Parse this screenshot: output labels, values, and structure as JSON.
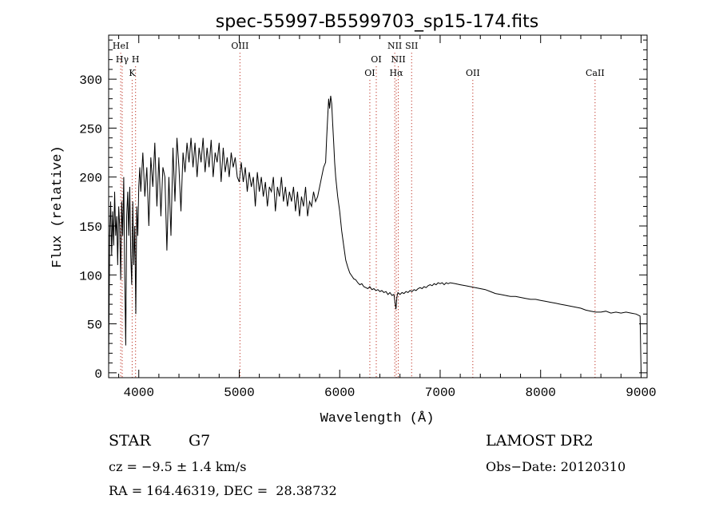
{
  "chart_data": {
    "type": "line",
    "title": "spec-55997-B5599703_sp15-174.fits",
    "xlabel": "Wavelength (Å)",
    "ylabel": "Flux (relative)",
    "xlim": [
      3700,
      9060
    ],
    "ylim": [
      -5,
      345
    ],
    "x_ticks": [
      4000,
      5000,
      6000,
      7000,
      8000,
      9000
    ],
    "y_ticks": [
      0,
      50,
      100,
      150,
      200,
      250,
      300
    ],
    "grid": false,
    "series": [
      {
        "line_color": "#000000",
        "points": [
          [
            3700,
            5
          ],
          [
            3710,
            140
          ],
          [
            3720,
            175
          ],
          [
            3730,
            120
          ],
          [
            3740,
            165
          ],
          [
            3750,
            130
          ],
          [
            3760,
            185
          ],
          [
            3770,
            140
          ],
          [
            3780,
            160
          ],
          [
            3790,
            110
          ],
          [
            3800,
            170
          ],
          [
            3810,
            150
          ],
          [
            3820,
            95
          ],
          [
            3830,
            175
          ],
          [
            3840,
            140
          ],
          [
            3850,
            200
          ],
          [
            3860,
            100
          ],
          [
            3870,
            28
          ],
          [
            3880,
            160
          ],
          [
            3890,
            185
          ],
          [
            3900,
            140
          ],
          [
            3910,
            190
          ],
          [
            3920,
            120
          ],
          [
            3930,
            90
          ],
          [
            3940,
            175
          ],
          [
            3950,
            110
          ],
          [
            3960,
            150
          ],
          [
            3970,
            60
          ],
          [
            3980,
            170
          ],
          [
            3990,
            140
          ],
          [
            4000,
            190
          ],
          [
            4010,
            210
          ],
          [
            4020,
            185
          ],
          [
            4040,
            225
          ],
          [
            4060,
            180
          ],
          [
            4080,
            210
          ],
          [
            4100,
            150
          ],
          [
            4120,
            220
          ],
          [
            4140,
            190
          ],
          [
            4160,
            235
          ],
          [
            4180,
            170
          ],
          [
            4200,
            220
          ],
          [
            4220,
            160
          ],
          [
            4240,
            210
          ],
          [
            4260,
            200
          ],
          [
            4280,
            125
          ],
          [
            4300,
            200
          ],
          [
            4320,
            140
          ],
          [
            4340,
            230
          ],
          [
            4360,
            175
          ],
          [
            4380,
            240
          ],
          [
            4400,
            210
          ],
          [
            4420,
            165
          ],
          [
            4440,
            225
          ],
          [
            4460,
            205
          ],
          [
            4480,
            235
          ],
          [
            4500,
            215
          ],
          [
            4520,
            240
          ],
          [
            4540,
            210
          ],
          [
            4560,
            235
          ],
          [
            4580,
            200
          ],
          [
            4600,
            230
          ],
          [
            4620,
            215
          ],
          [
            4640,
            240
          ],
          [
            4660,
            205
          ],
          [
            4680,
            230
          ],
          [
            4700,
            210
          ],
          [
            4720,
            238
          ],
          [
            4740,
            200
          ],
          [
            4760,
            225
          ],
          [
            4780,
            215
          ],
          [
            4800,
            235
          ],
          [
            4820,
            195
          ],
          [
            4840,
            230
          ],
          [
            4860,
            205
          ],
          [
            4880,
            220
          ],
          [
            4900,
            200
          ],
          [
            4920,
            225
          ],
          [
            4940,
            210
          ],
          [
            4960,
            220
          ],
          [
            4980,
            200
          ],
          [
            5000,
            195
          ],
          [
            5020,
            215
          ],
          [
            5040,
            195
          ],
          [
            5060,
            210
          ],
          [
            5080,
            185
          ],
          [
            5100,
            205
          ],
          [
            5120,
            190
          ],
          [
            5140,
            200
          ],
          [
            5160,
            170
          ],
          [
            5180,
            205
          ],
          [
            5200,
            185
          ],
          [
            5220,
            200
          ],
          [
            5240,
            180
          ],
          [
            5260,
            195
          ],
          [
            5280,
            170
          ],
          [
            5300,
            190
          ],
          [
            5320,
            185
          ],
          [
            5340,
            200
          ],
          [
            5360,
            165
          ],
          [
            5380,
            190
          ],
          [
            5400,
            180
          ],
          [
            5420,
            200
          ],
          [
            5440,
            175
          ],
          [
            5460,
            190
          ],
          [
            5480,
            170
          ],
          [
            5500,
            185
          ],
          [
            5520,
            175
          ],
          [
            5540,
            190
          ],
          [
            5560,
            165
          ],
          [
            5580,
            185
          ],
          [
            5600,
            160
          ],
          [
            5620,
            180
          ],
          [
            5640,
            170
          ],
          [
            5660,
            190
          ],
          [
            5680,
            160
          ],
          [
            5700,
            175
          ],
          [
            5720,
            170
          ],
          [
            5740,
            185
          ],
          [
            5760,
            175
          ],
          [
            5780,
            180
          ],
          [
            5800,
            190
          ],
          [
            5820,
            200
          ],
          [
            5840,
            210
          ],
          [
            5860,
            215
          ],
          [
            5870,
            240
          ],
          [
            5880,
            260
          ],
          [
            5890,
            280
          ],
          [
            5900,
            270
          ],
          [
            5910,
            283
          ],
          [
            5920,
            275
          ],
          [
            5930,
            255
          ],
          [
            5940,
            235
          ],
          [
            5950,
            215
          ],
          [
            5960,
            200
          ],
          [
            5980,
            180
          ],
          [
            6000,
            165
          ],
          [
            6020,
            145
          ],
          [
            6040,
            130
          ],
          [
            6060,
            115
          ],
          [
            6080,
            108
          ],
          [
            6100,
            102
          ],
          [
            6120,
            99
          ],
          [
            6140,
            96
          ],
          [
            6160,
            95
          ],
          [
            6180,
            92
          ],
          [
            6200,
            90
          ],
          [
            6220,
            91
          ],
          [
            6240,
            88
          ],
          [
            6260,
            87
          ],
          [
            6280,
            86
          ],
          [
            6300,
            88
          ],
          [
            6320,
            85
          ],
          [
            6340,
            86
          ],
          [
            6360,
            84
          ],
          [
            6380,
            85
          ],
          [
            6400,
            83
          ],
          [
            6420,
            84
          ],
          [
            6440,
            82
          ],
          [
            6460,
            83
          ],
          [
            6480,
            80
          ],
          [
            6500,
            82
          ],
          [
            6520,
            79
          ],
          [
            6540,
            80
          ],
          [
            6560,
            65
          ],
          [
            6570,
            78
          ],
          [
            6580,
            82
          ],
          [
            6600,
            80
          ],
          [
            6620,
            82
          ],
          [
            6640,
            81
          ],
          [
            6660,
            83
          ],
          [
            6680,
            82
          ],
          [
            6700,
            84
          ],
          [
            6720,
            83
          ],
          [
            6740,
            85
          ],
          [
            6760,
            84
          ],
          [
            6780,
            86
          ],
          [
            6800,
            87
          ],
          [
            6820,
            86
          ],
          [
            6840,
            88
          ],
          [
            6860,
            87
          ],
          [
            6880,
            89
          ],
          [
            6900,
            90
          ],
          [
            6920,
            89
          ],
          [
            6940,
            91
          ],
          [
            6960,
            90
          ],
          [
            6980,
            92
          ],
          [
            7000,
            91
          ],
          [
            7020,
            92
          ],
          [
            7040,
            90
          ],
          [
            7060,
            92
          ],
          [
            7080,
            91
          ],
          [
            7100,
            92
          ],
          [
            7150,
            91
          ],
          [
            7200,
            90
          ],
          [
            7250,
            89
          ],
          [
            7300,
            88
          ],
          [
            7350,
            87
          ],
          [
            7400,
            86
          ],
          [
            7450,
            85
          ],
          [
            7500,
            83
          ],
          [
            7550,
            81
          ],
          [
            7600,
            80
          ],
          [
            7650,
            79
          ],
          [
            7700,
            78
          ],
          [
            7750,
            78
          ],
          [
            7800,
            77
          ],
          [
            7850,
            76
          ],
          [
            7900,
            75
          ],
          [
            7950,
            75
          ],
          [
            8000,
            74
          ],
          [
            8050,
            73
          ],
          [
            8100,
            72
          ],
          [
            8150,
            71
          ],
          [
            8200,
            70
          ],
          [
            8250,
            69
          ],
          [
            8300,
            68
          ],
          [
            8350,
            67
          ],
          [
            8400,
            66
          ],
          [
            8450,
            64
          ],
          [
            8500,
            63
          ],
          [
            8550,
            62
          ],
          [
            8600,
            62
          ],
          [
            8650,
            63
          ],
          [
            8700,
            61
          ],
          [
            8750,
            62
          ],
          [
            8800,
            61
          ],
          [
            8850,
            62
          ],
          [
            8900,
            61
          ],
          [
            8950,
            60
          ],
          [
            8990,
            58
          ],
          [
            9000,
            0
          ]
        ]
      }
    ],
    "line_markers": [
      {
        "label": "HeI",
        "x": 3820,
        "row": 1
      },
      {
        "label": "Hγ",
        "x": 3835,
        "row": 2
      },
      {
        "label": "H",
        "x": 3968,
        "row": 2
      },
      {
        "label": "K",
        "x": 3934,
        "row": 3
      },
      {
        "label": "OIII",
        "x": 5007,
        "row": 1
      },
      {
        "label": "OI",
        "x": 6300,
        "row": 3
      },
      {
        "label": "OI",
        "x": 6364,
        "row": 2
      },
      {
        "label": "NII",
        "x": 6548,
        "row": 1
      },
      {
        "label": "NII",
        "x": 6583,
        "row": 2
      },
      {
        "label": "Hα",
        "x": 6563,
        "row": 3
      },
      {
        "label": "SII",
        "x": 6716,
        "row": 1
      },
      {
        "label": "OII",
        "x": 7325,
        "row": 3
      },
      {
        "label": "CaII",
        "x": 8542,
        "row": 3
      }
    ],
    "marker_color": "#c0392b"
  },
  "info": {
    "object_class": "STAR",
    "subclass": "G7",
    "survey": "LAMOST DR2",
    "redshift": "cz = −9.5 ± 1.4 km/s",
    "obs_date": "Obs−Date: 20120310",
    "coordinates": "RA = 164.46319, DEC =  28.38732"
  }
}
